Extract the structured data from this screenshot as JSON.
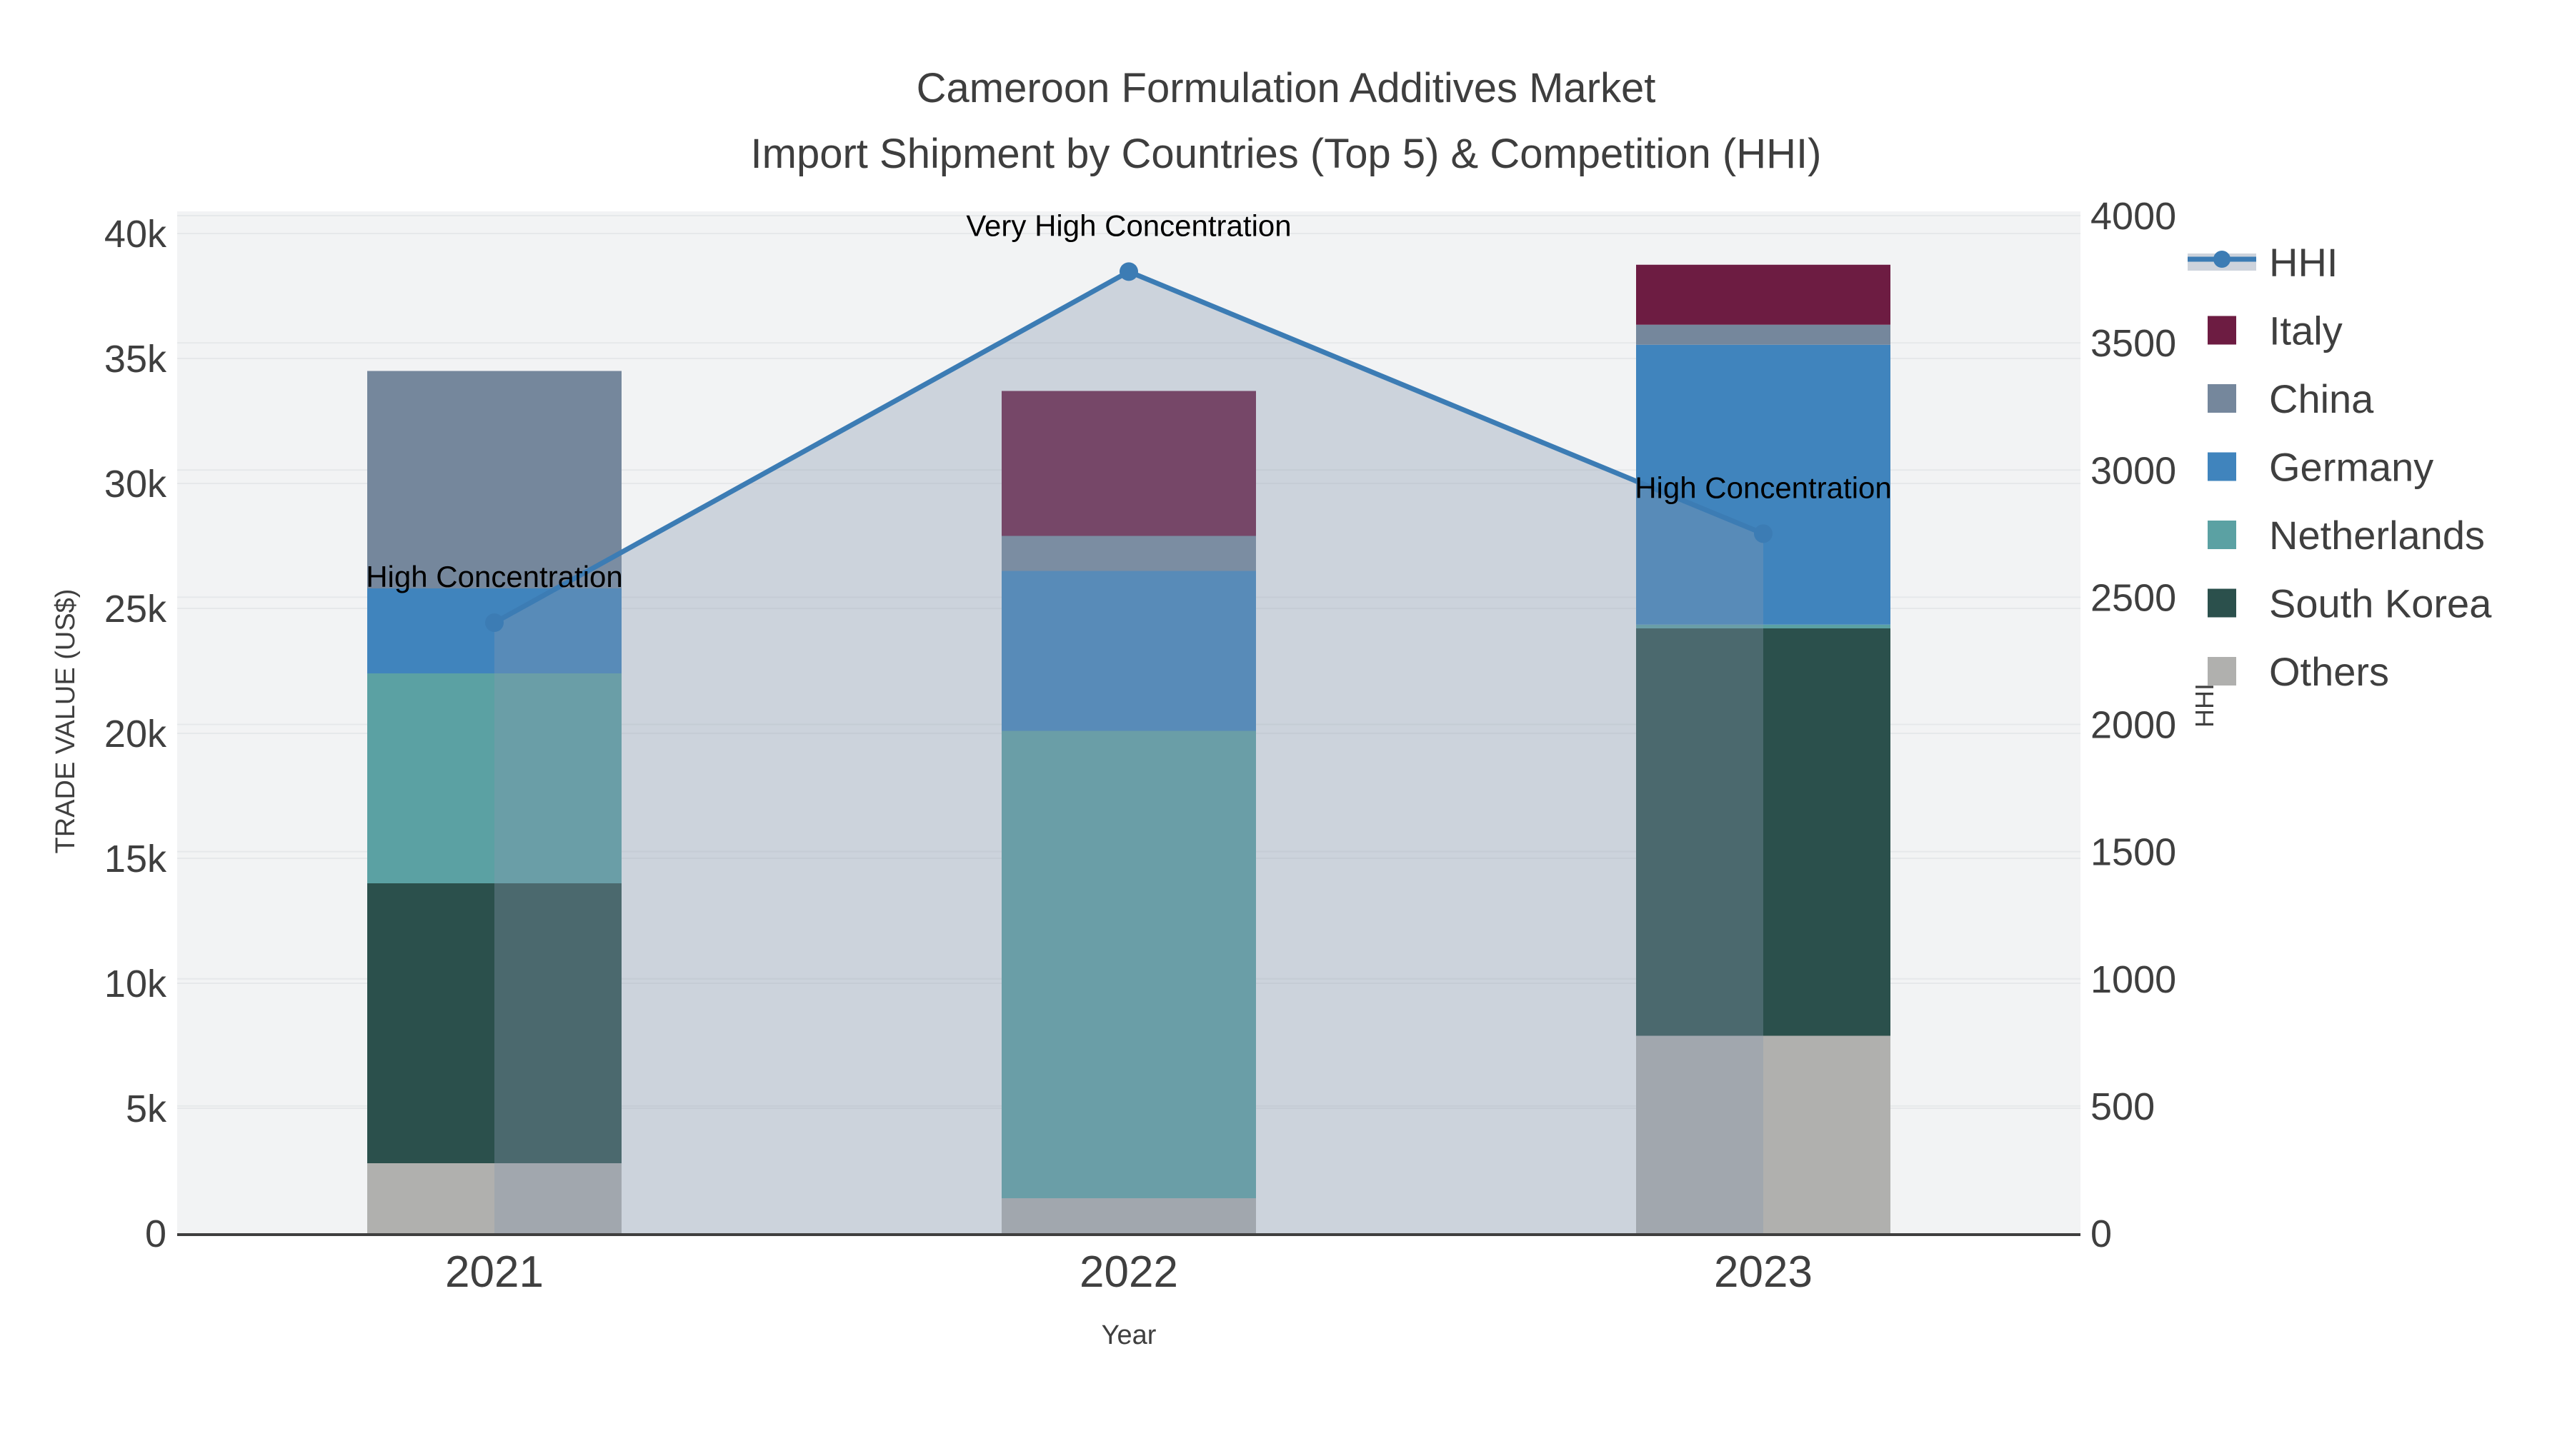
{
  "title": {
    "line1": "Cameroon Formulation Additives Market",
    "line2": "Import Shipment by Countries (Top 5) & Competition (HHI)"
  },
  "axes": {
    "x": {
      "title": "Year",
      "ticks": [
        "2021",
        "2022",
        "2023"
      ]
    },
    "y_left": {
      "title": "TRADE VALUE (US$)",
      "ticks": [
        "0",
        "5k",
        "10k",
        "15k",
        "20k",
        "25k",
        "30k",
        "35k",
        "40k"
      ]
    },
    "y_right": {
      "title": "HHI",
      "ticks": [
        "0",
        "500",
        "1000",
        "1500",
        "2000",
        "2500",
        "3000",
        "3500",
        "4000"
      ]
    }
  },
  "legend": {
    "items": [
      {
        "label": "HHI",
        "swatch": "line",
        "color": "#3c7cb4",
        "band_color": "#cdd3dc"
      },
      {
        "label": "Italy",
        "swatch": "square",
        "color": "#6d1c42"
      },
      {
        "label": "China",
        "swatch": "square",
        "color": "#75879c"
      },
      {
        "label": "Germany",
        "swatch": "square",
        "color": "#4084bd"
      },
      {
        "label": "Netherlands",
        "swatch": "square",
        "color": "#5ba1a3"
      },
      {
        "label": "South Korea",
        "swatch": "square",
        "color": "#2b504c"
      },
      {
        "label": "Others",
        "swatch": "square",
        "color": "#b0b0ae"
      }
    ]
  },
  "annotations": [
    {
      "text": "High Concentration",
      "category_index": 0
    },
    {
      "text": "Very High Concentration",
      "category_index": 1
    },
    {
      "text": "High Concentration",
      "category_index": 2
    }
  ],
  "styles": {
    "plot_bg": "#f2f3f4",
    "grid": "#e6e8ea",
    "axis_line": "#3f3f3f",
    "text": "#3f3f3f",
    "annotation": "#000000"
  },
  "chart_data": {
    "type": "bar",
    "subtype": "stacked_bars_with_line_area",
    "categories": [
      "2021",
      "2022",
      "2023"
    ],
    "xlabel": "Year",
    "ylabel_left": "TRADE VALUE (US$)",
    "ylabel_right": "HHI",
    "y_left_range": [
      0,
      40000
    ],
    "y_right_range": [
      0,
      4000
    ],
    "grid": true,
    "legend_position": "right",
    "bar_stack_order_bottom_to_top": [
      "Others",
      "South Korea",
      "Netherlands",
      "Germany",
      "China",
      "Italy"
    ],
    "series": [
      {
        "name": "Others",
        "color": "#b0b0ae",
        "values": [
          2800,
          1400,
          7900
        ]
      },
      {
        "name": "South Korea",
        "color": "#2b504c",
        "values": [
          11200,
          0,
          16300
        ]
      },
      {
        "name": "Netherlands",
        "color": "#5ba1a3",
        "values": [
          8400,
          18700,
          150
        ]
      },
      {
        "name": "Germany",
        "color": "#4084bd",
        "values": [
          3400,
          6400,
          11200
        ]
      },
      {
        "name": "China",
        "color": "#75879c",
        "values": [
          8700,
          1400,
          800
        ]
      },
      {
        "name": "Italy",
        "color": "#6d1c42",
        "values": [
          0,
          5800,
          2400
        ]
      }
    ],
    "bar_totals": [
      34500,
      33700,
      38750
    ],
    "line_series": {
      "name": "HHI",
      "axis": "right",
      "color": "#3c7cb4",
      "fill": "rgba(134,151,174,0.35)",
      "values": [
        2400,
        3780,
        2750
      ]
    }
  }
}
